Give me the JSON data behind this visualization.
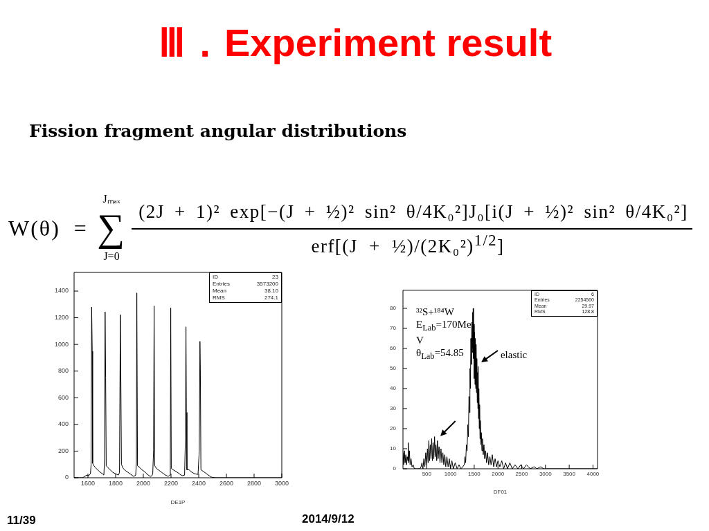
{
  "chart_data": [
    {
      "type": "line",
      "title": "Ⅲ．Experiment result",
      "subtitle": "Fission fragment angular distributions",
      "xlabel": "DE1P",
      "x": [
        1500,
        1560,
        1575,
        1590,
        1605,
        1618,
        1623,
        1627,
        1631,
        1634,
        1640,
        1655,
        1670,
        1690,
        1705,
        1715,
        1720,
        1724,
        1728,
        1732,
        1745,
        1760,
        1780,
        1800,
        1820,
        1828,
        1834,
        1838,
        1842,
        1855,
        1870,
        1890,
        1910,
        1930,
        1945,
        1950,
        1953,
        1958,
        1970,
        1990,
        2010,
        2030,
        2050,
        2062,
        2068,
        2074,
        2078,
        2082,
        2095,
        2120,
        2140,
        2160,
        2180,
        2192,
        2195,
        2198,
        2202,
        2215,
        2240,
        2260,
        2280,
        2298,
        2304,
        2308,
        2311,
        2315,
        2330,
        2345,
        2370,
        2395,
        2404,
        2409,
        2412,
        2416,
        2430,
        2450,
        2470,
        2490,
        2520,
        3000
      ],
      "values": [
        0,
        0,
        8,
        20,
        15,
        30,
        100,
        1280,
        950,
        110,
        95,
        75,
        60,
        40,
        30,
        20,
        140,
        1244,
        750,
        90,
        75,
        60,
        40,
        30,
        20,
        40,
        1223,
        700,
        100,
        70,
        55,
        40,
        25,
        10,
        20,
        120,
        1386,
        90,
        80,
        60,
        45,
        25,
        10,
        15,
        30,
        210,
        1288,
        90,
        70,
        50,
        35,
        20,
        10,
        20,
        140,
        1274,
        70,
        60,
        45,
        30,
        15,
        20,
        300,
        1132,
        490,
        60,
        60,
        45,
        30,
        25,
        200,
        1023,
        820,
        60,
        50,
        35,
        20,
        5,
        0,
        0
      ],
      "color": "#000000",
      "xlim": [
        1500,
        3000
      ],
      "ylim": [
        0,
        1540
      ],
      "xticks": [
        1600,
        1800,
        2000,
        2200,
        2400,
        2600,
        2800,
        3000
      ],
      "yticks": [
        0,
        200,
        400,
        600,
        800,
        1000,
        1200,
        1400
      ],
      "annotations": [
        "W(θ) =",
        "∑",
        "Jₘₐₓ",
        "J=0",
        "(2J + 1)² exp[−(J + ½)² sin² θ/4K₀²]J₀[i(J + ½)² sin² θ/4K₀²]",
        "erf[(J + ½)/(2K₀²)$^{1/2}$]",
        "ID 23",
        "Entries 3573200",
        "Mean 38.10",
        "RMS 274.1",
        "11/39",
        "2014/9/12"
      ]
    },
    {
      "type": "line",
      "xlabel": "DF01",
      "x": [
        0,
        15,
        30,
        45,
        60,
        75,
        90,
        105,
        112,
        120,
        135,
        150,
        170,
        190,
        215,
        240,
        300,
        360,
        380,
        400,
        420,
        440,
        460,
        480,
        500,
        515,
        530,
        545,
        560,
        575,
        590,
        605,
        620,
        635,
        650,
        665,
        680,
        695,
        710,
        725,
        740,
        760,
        780,
        800,
        820,
        840,
        860,
        880,
        900,
        925,
        950,
        975,
        1000,
        1030,
        1060,
        1100,
        1140,
        1180,
        1220,
        1260,
        1290,
        1305,
        1320,
        1335,
        1350,
        1365,
        1378,
        1390,
        1400,
        1410,
        1420,
        1430,
        1440,
        1450,
        1458,
        1466,
        1472,
        1478,
        1485,
        1492,
        1500,
        1508,
        1516,
        1524,
        1532,
        1540,
        1548,
        1556,
        1564,
        1572,
        1578,
        1583,
        1590,
        1598,
        1606,
        1614,
        1622,
        1630,
        1640,
        1650,
        1662,
        1675,
        1690,
        1705,
        1720,
        1740,
        1760,
        1780,
        1805,
        1830,
        1855,
        1880,
        1910,
        1940,
        1970,
        2000,
        2040,
        2080,
        2120,
        2160,
        2200,
        2250,
        2300,
        2360,
        2420,
        2480,
        2540,
        2600,
        2680,
        2760,
        2820,
        2900,
        2960,
        4096
      ],
      "values": [
        8,
        2,
        9,
        3,
        7,
        2,
        6,
        4,
        13,
        3,
        9,
        2,
        5,
        1,
        2,
        0,
        0,
        0,
        1,
        3,
        0,
        5,
        1,
        8,
        2,
        10,
        3,
        14,
        4,
        12,
        5,
        15,
        4,
        13,
        5,
        16,
        6,
        12,
        4,
        14,
        5,
        11,
        3,
        10,
        3,
        8,
        2,
        7,
        1,
        6,
        1,
        5,
        0,
        4,
        0,
        3,
        0,
        2,
        0,
        1,
        2,
        6,
        3,
        12,
        9,
        22,
        16,
        36,
        28,
        50,
        40,
        65,
        52,
        73,
        58,
        78,
        60,
        80,
        55,
        72,
        45,
        68,
        42,
        65,
        40,
        62,
        38,
        55,
        33,
        48,
        30,
        51,
        25,
        40,
        20,
        32,
        15,
        24,
        12,
        18,
        9,
        15,
        7,
        12,
        5,
        9,
        3,
        8,
        2,
        6,
        2,
        7,
        1,
        5,
        1,
        4,
        1,
        4,
        0,
        3,
        0,
        3,
        0,
        2,
        0,
        2,
        0,
        2,
        0,
        1,
        0,
        1,
        0,
        0
      ],
      "color": "#000000",
      "xlim": [
        0,
        4096
      ],
      "ylim": [
        0,
        89
      ],
      "xticks": [
        500,
        1000,
        1500,
        2000,
        2500,
        3000,
        3500,
        4000
      ],
      "yticks": [
        0,
        10,
        20,
        30,
        40,
        50,
        60,
        70,
        80
      ],
      "annotations": [
        "ID 6",
        "Entries 2254500",
        "Mean 29.97",
        "RMS 128.8",
        "³²S+¹⁸⁴W",
        "E$_{Lab}$=170MeV",
        "θ$_{Lab}$=54.85",
        {
          "text": "elastic",
          "x": 1573,
          "y": 52
        }
      ]
    }
  ]
}
